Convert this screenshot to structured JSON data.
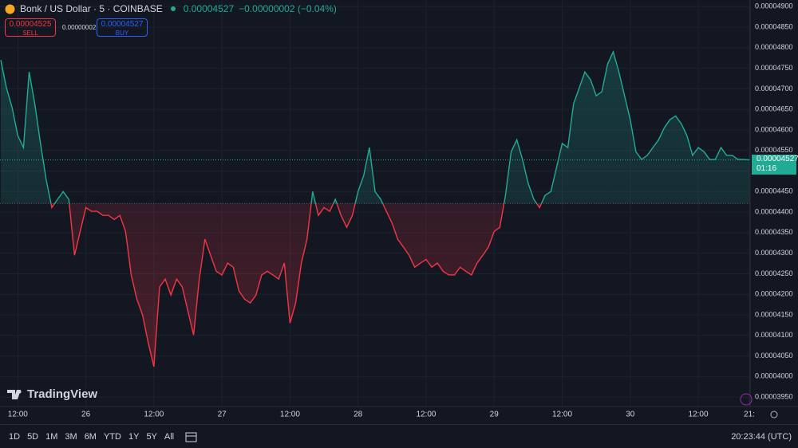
{
  "header": {
    "symbol": "Bonk / US Dollar · 5 · COINBASE",
    "last": "0.00004527",
    "change": "−0.00000002 (−0.04%)"
  },
  "trade": {
    "sell_price": "0.00004525",
    "sell": "SELL",
    "spread": "0.00000002",
    "buy_price": "0.00004527",
    "buy": "BUY"
  },
  "price_label": {
    "price": "0.00004527",
    "countdown": "01:16"
  },
  "logo": "TradingView",
  "toolbar": {
    "ranges": [
      "1D",
      "5D",
      "1M",
      "3M",
      "6M",
      "YTD",
      "1Y",
      "5Y",
      "All"
    ],
    "clock": "20:23:44 (UTC)"
  },
  "chart_data": {
    "type": "line",
    "baseline": 4.421e-05,
    "last": 4.527e-05,
    "color_up": "#22ab94",
    "color_down": "#f23645",
    "grid": true,
    "ylim": [
      3.927e-05,
      4.916e-05
    ],
    "yticks": [
      {
        "value": 4.9e-05,
        "label": "0.00004900"
      },
      {
        "value": 4.85e-05,
        "label": "0.00004850"
      },
      {
        "value": 4.8e-05,
        "label": "0.00004800"
      },
      {
        "value": 4.75e-05,
        "label": "0.00004750"
      },
      {
        "value": 4.7e-05,
        "label": "0.00004700"
      },
      {
        "value": 4.65e-05,
        "label": "0.00004650"
      },
      {
        "value": 4.6e-05,
        "label": "0.00004600"
      },
      {
        "value": 4.55e-05,
        "label": "0.00004550"
      },
      {
        "value": 4.5e-05,
        "label": "0.00004500"
      },
      {
        "value": 4.45e-05,
        "label": "0.00004450"
      },
      {
        "value": 4.4e-05,
        "label": "0.00004400"
      },
      {
        "value": 4.35e-05,
        "label": "0.00004350"
      },
      {
        "value": 4.3e-05,
        "label": "0.00004300"
      },
      {
        "value": 4.25e-05,
        "label": "0.00004250"
      },
      {
        "value": 4.2e-05,
        "label": "0.00004200"
      },
      {
        "value": 4.15e-05,
        "label": "0.00004150"
      },
      {
        "value": 4.1e-05,
        "label": "0.00004100"
      },
      {
        "value": 4.05e-05,
        "label": "0.00004050"
      },
      {
        "value": 4e-05,
        "label": "0.00004000"
      },
      {
        "value": 3.95e-05,
        "label": "0.00003950"
      }
    ],
    "categories": [
      null,
      null,
      null,
      "12:00",
      null,
      null,
      null,
      null,
      null,
      null,
      null,
      null,
      null,
      null,
      null,
      "26",
      null,
      null,
      null,
      null,
      null,
      null,
      null,
      null,
      null,
      null,
      null,
      "12:00",
      null,
      null,
      null,
      null,
      null,
      null,
      null,
      null,
      null,
      null,
      null,
      "27",
      null,
      null,
      null,
      null,
      null,
      null,
      null,
      null,
      null,
      null,
      null,
      "12:00",
      null,
      null,
      null,
      null,
      null,
      null,
      null,
      null,
      null,
      null,
      null,
      "28",
      null,
      null,
      null,
      null,
      null,
      null,
      null,
      null,
      null,
      null,
      null,
      "12:00",
      null,
      null,
      null,
      null,
      null,
      null,
      null,
      null,
      null,
      null,
      null,
      "29",
      null,
      null,
      null,
      null,
      null,
      null,
      null,
      null,
      null,
      null,
      null,
      "12:00",
      null,
      null,
      null,
      null,
      null,
      null,
      null,
      null,
      null,
      null,
      null,
      "30",
      null,
      null,
      null,
      null,
      null,
      null,
      null,
      null,
      null,
      null,
      null,
      "12:00",
      null,
      null,
      null,
      null,
      null,
      null,
      null,
      null,
      "21:"
    ],
    "values": [
      4.77e-05,
      4.702e-05,
      4.654e-05,
      4.586e-05,
      4.557e-05,
      4.741e-05,
      4.663e-05,
      4.567e-05,
      4.479e-05,
      4.411e-05,
      4.431e-05,
      4.45e-05,
      4.431e-05,
      4.295e-05,
      4.353e-05,
      4.411e-05,
      4.402e-05,
      4.402e-05,
      4.392e-05,
      4.392e-05,
      4.382e-05,
      4.392e-05,
      4.353e-05,
      4.247e-05,
      4.188e-05,
      4.15e-05,
      4.082e-05,
      4.024e-05,
      4.218e-05,
      4.237e-05,
      4.198e-05,
      4.237e-05,
      4.218e-05,
      4.159e-05,
      4.101e-05,
      4.237e-05,
      4.334e-05,
      4.295e-05,
      4.256e-05,
      4.247e-05,
      4.276e-05,
      4.266e-05,
      4.208e-05,
      4.188e-05,
      4.179e-05,
      4.198e-05,
      4.247e-05,
      4.256e-05,
      4.247e-05,
      4.237e-05,
      4.276e-05,
      4.13e-05,
      4.179e-05,
      4.276e-05,
      4.334e-05,
      4.45e-05,
      4.392e-05,
      4.411e-05,
      4.402e-05,
      4.431e-05,
      4.392e-05,
      4.363e-05,
      4.392e-05,
      4.45e-05,
      4.489e-05,
      4.557e-05,
      4.45e-05,
      4.431e-05,
      4.402e-05,
      4.373e-05,
      4.334e-05,
      4.315e-05,
      4.295e-05,
      4.266e-05,
      4.276e-05,
      4.285e-05,
      4.266e-05,
      4.276e-05,
      4.256e-05,
      4.247e-05,
      4.247e-05,
      4.266e-05,
      4.256e-05,
      4.247e-05,
      4.276e-05,
      4.295e-05,
      4.315e-05,
      4.353e-05,
      4.363e-05,
      4.441e-05,
      4.547e-05,
      4.576e-05,
      4.528e-05,
      4.47e-05,
      4.431e-05,
      4.411e-05,
      4.441e-05,
      4.45e-05,
      4.508e-05,
      4.567e-05,
      4.557e-05,
      4.663e-05,
      4.702e-05,
      4.741e-05,
      4.722e-05,
      4.683e-05,
      4.693e-05,
      4.76e-05,
      4.79e-05,
      4.741e-05,
      4.683e-05,
      4.625e-05,
      4.547e-05,
      4.528e-05,
      4.538e-05,
      4.557e-05,
      4.576e-05,
      4.605e-05,
      4.625e-05,
      4.634e-05,
      4.615e-05,
      4.586e-05,
      4.538e-05,
      4.557e-05,
      4.547e-05,
      4.528e-05,
      4.528e-05,
      4.557e-05,
      4.538e-05,
      4.538e-05,
      4.528e-05,
      4.528e-05,
      4.527e-05
    ]
  }
}
